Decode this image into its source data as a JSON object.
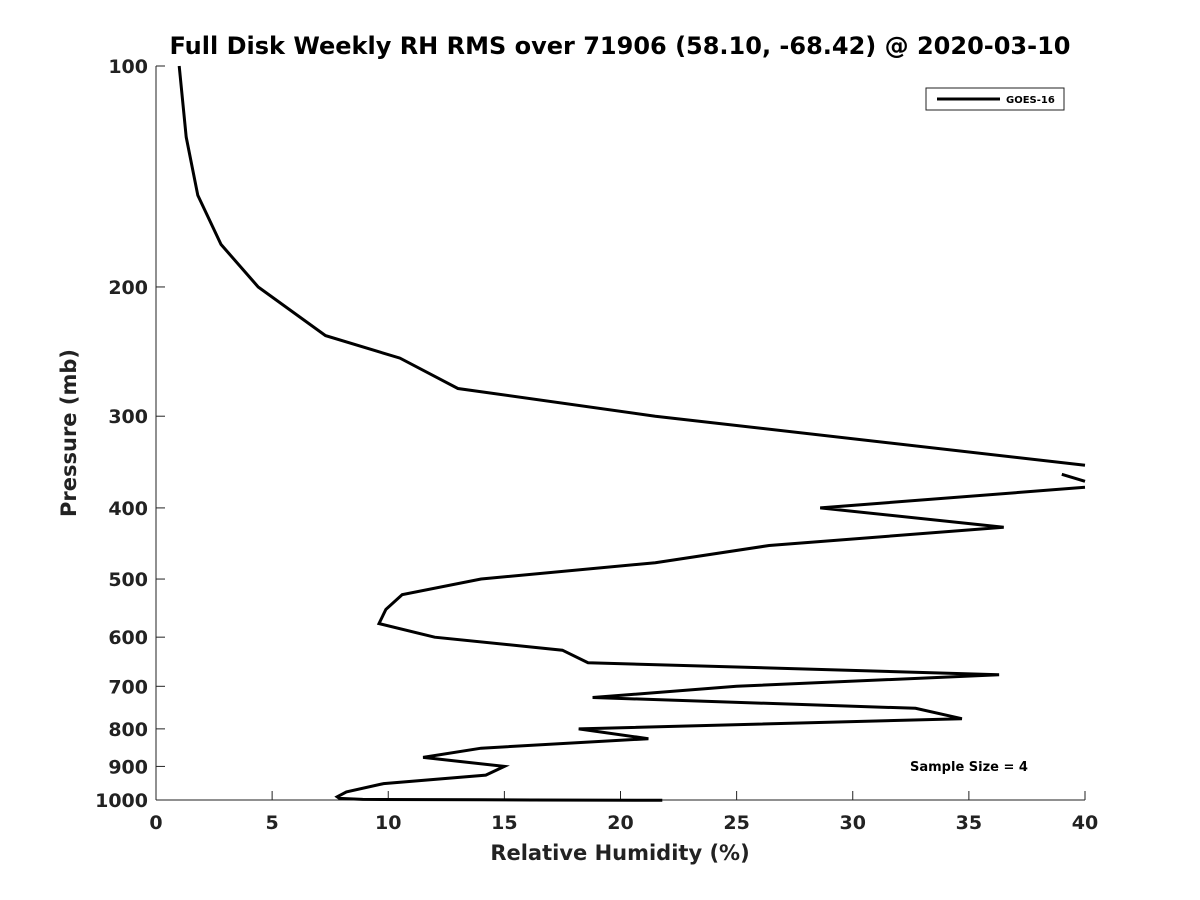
{
  "chart_data": {
    "type": "line",
    "title": "Full Disk Weekly RH RMS over 71906 (58.10, -68.42) @ 2020-03-10",
    "xlabel": "Relative Humidity (%)",
    "ylabel": "Pressure (mb)",
    "xlim": [
      0,
      40
    ],
    "ylim": [
      1000,
      100
    ],
    "y_scale": "log",
    "x_ticks": [
      0,
      5,
      10,
      15,
      20,
      25,
      30,
      35,
      40
    ],
    "y_ticks": [
      100,
      200,
      300,
      400,
      500,
      600,
      700,
      800,
      900,
      1000
    ],
    "grid": false,
    "legend_position": "top-right",
    "annotation": "Sample Size = 4",
    "series": [
      {
        "name": "GOES-16",
        "color": "#000000",
        "points": [
          [
            1.0,
            100
          ],
          [
            1.3,
            125
          ],
          [
            1.8,
            150
          ],
          [
            2.8,
            175
          ],
          [
            4.4,
            200
          ],
          [
            7.3,
            233
          ],
          [
            10.5,
            250
          ],
          [
            13.0,
            275
          ],
          [
            21.5,
            300
          ],
          [
            40.0,
            350
          ]
        ],
        "segment2": [
          [
            39.0,
            360
          ],
          [
            40.0,
            368
          ]
        ],
        "segment3": [
          [
            40.0,
            375
          ],
          [
            28.6,
            400
          ],
          [
            36.5,
            425
          ],
          [
            26.4,
            450
          ],
          [
            21.5,
            475
          ],
          [
            14.0,
            500
          ],
          [
            10.6,
            525
          ],
          [
            9.9,
            550
          ],
          [
            9.6,
            575
          ],
          [
            12.0,
            600
          ],
          [
            17.5,
            625
          ],
          [
            18.6,
            650
          ],
          [
            36.3,
            675
          ],
          [
            25.0,
            700
          ],
          [
            18.8,
            725
          ],
          [
            32.7,
            750
          ],
          [
            34.7,
            775
          ],
          [
            18.2,
            800
          ],
          [
            21.2,
            825
          ],
          [
            14.0,
            850
          ],
          [
            11.5,
            875
          ],
          [
            15.0,
            900
          ],
          [
            14.2,
            925
          ],
          [
            9.8,
            950
          ],
          [
            8.2,
            975
          ],
          [
            7.8,
            990
          ],
          [
            7.9,
            995
          ],
          [
            8.9,
            998
          ],
          [
            14.0,
            999
          ],
          [
            16.2,
            1000
          ],
          [
            21.8,
            1001
          ]
        ]
      }
    ]
  }
}
